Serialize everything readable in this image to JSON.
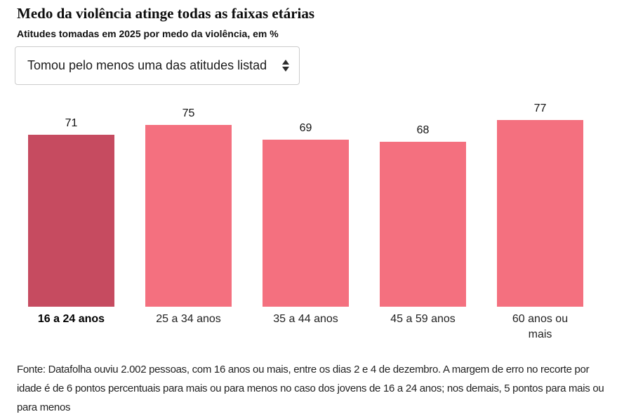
{
  "page": {
    "title": "Medo da violência atinge todas as faixas etárias",
    "subtitle": "Atitudes tomadas em 2025 por medo da violência, em %"
  },
  "dropdown": {
    "visible_value": "Tomou pelo menos uma das atitudes listad",
    "spinner_icon": "up-down-arrows"
  },
  "chart_data": {
    "type": "bar",
    "title": "Medo da violência atinge todas as faixas etárias",
    "subtitle": "Atitudes tomadas em 2025 por medo da violência, em %",
    "unit": "%",
    "categories": [
      "16 a 24 anos",
      "25 a 34 anos",
      "35 a 44 anos",
      "45 a 59 anos",
      "60 anos ou mais"
    ],
    "values": [
      71,
      75,
      69,
      68,
      77
    ],
    "value_labels": true,
    "highlighted_category": "16 a 24 anos",
    "highlight_color": "#c64b60",
    "bar_color": "#f4707f",
    "axes": "none",
    "gridlines": "off",
    "legend": "none",
    "ylim": [
      0,
      86
    ]
  },
  "footer": {
    "source_note": "Fonte: Datafolha ouviu 2.002 pessoas, com 16 anos ou mais, entre os dias 2 e 4 de dezembro. A margem de erro no recorte por idade é de 6 pontos percentuais para mais ou para menos no caso dos jovens de 16 a 24 anos; nos demais, 5 pontos para mais ou para menos"
  },
  "colors": {
    "background": "#ffffff",
    "title_text": "#0e0e0e",
    "body_text": "#222222",
    "control_border": "#cccccc"
  }
}
